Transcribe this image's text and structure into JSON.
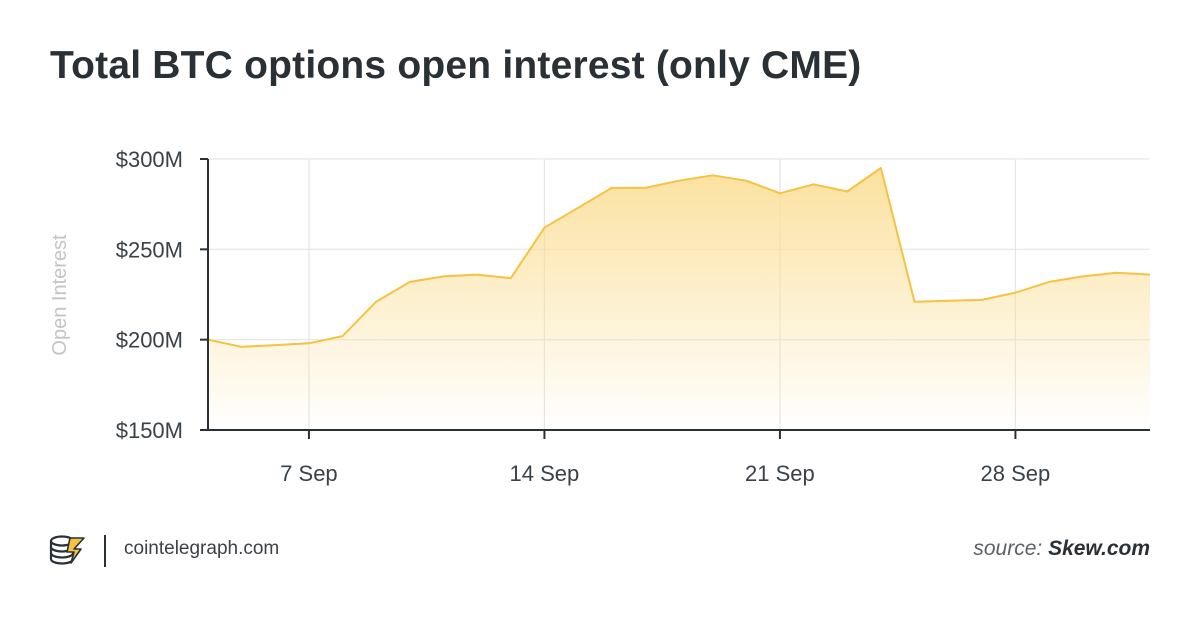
{
  "title": "Total BTC options open interest (only CME)",
  "chart_data": {
    "type": "area",
    "ylabel": "Open Interest",
    "xlabel": "",
    "ylim": [
      150,
      300
    ],
    "yticks": [
      150,
      200,
      250,
      300
    ],
    "ytick_labels": [
      "$150M",
      "$200M",
      "$250M",
      "$300M"
    ],
    "xlim": [
      "2020-09-04",
      "2020-10-02"
    ],
    "xticks": [
      "2020-09-07",
      "2020-09-14",
      "2020-09-21",
      "2020-09-28"
    ],
    "xtick_labels": [
      "7 Sep",
      "14 Sep",
      "21 Sep",
      "28 Sep"
    ],
    "grid": true,
    "legend": false,
    "line_color": "#f5c242",
    "fill_color": "#fbdc8e",
    "x": [
      "2020-09-04",
      "2020-09-05",
      "2020-09-06",
      "2020-09-07",
      "2020-09-08",
      "2020-09-09",
      "2020-09-10",
      "2020-09-11",
      "2020-09-12",
      "2020-09-13",
      "2020-09-14",
      "2020-09-15",
      "2020-09-16",
      "2020-09-17",
      "2020-09-18",
      "2020-09-19",
      "2020-09-20",
      "2020-09-21",
      "2020-09-22",
      "2020-09-23",
      "2020-09-24",
      "2020-09-25",
      "2020-09-26",
      "2020-09-27",
      "2020-09-28",
      "2020-09-29",
      "2020-09-30",
      "2020-10-01",
      "2020-10-02"
    ],
    "values": [
      200,
      196,
      197,
      198,
      202,
      221,
      232,
      235,
      236,
      234,
      262,
      273,
      284,
      284,
      288,
      291,
      288,
      281,
      286,
      282,
      295,
      221,
      221.5,
      222,
      226,
      232,
      235,
      237,
      236
    ]
  },
  "footer": {
    "site": "cointelegraph.com",
    "source_prefix": "source:",
    "source_name": "Skew.com"
  },
  "colors": {
    "title": "#2a3136",
    "axis": "#2a3136",
    "grid": "#e6e6e6",
    "ylabel": "#c4c4c4",
    "tick_text": "#3a4248",
    "logo_accent": "#f5c242"
  }
}
